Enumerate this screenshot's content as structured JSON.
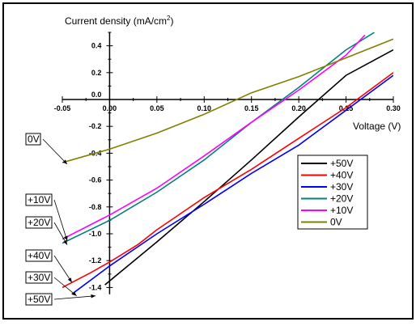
{
  "chart_data": {
    "type": "line",
    "ylabel": "Current density (mA/cm",
    "ylabel_sup": "2",
    "ylabel_close": ")",
    "xlabel": "Voltage (V)",
    "xlim": [
      -0.05,
      0.3
    ],
    "ylim": [
      -1.5,
      0.5
    ],
    "x_ticks": [
      -0.05,
      0.0,
      0.05,
      0.1,
      0.15,
      0.2,
      0.25,
      0.3
    ],
    "x_tick_labels": [
      "-0.05",
      "0.00",
      "0.05",
      "0.10",
      "0.15",
      "0.20",
      "0.25",
      "0.30"
    ],
    "y_ticks": [
      0.4,
      0.2,
      0.0,
      -0.2,
      -0.4,
      -0.6,
      -0.8,
      -1.0,
      -1.2,
      -1.4
    ],
    "y_tick_labels": [
      "0.4",
      "0.2",
      "0.0",
      "-0.2",
      "-0.4",
      "-0.6",
      "-0.8",
      "-1.0",
      "-1.2",
      "-1.4"
    ],
    "grid": false,
    "legend_position": "right-middle",
    "series": [
      {
        "name": "+50V",
        "color": "#000000",
        "points": [
          [
            -0.005,
            -1.38
          ],
          [
            0.05,
            -1.06
          ],
          [
            0.1,
            -0.76
          ],
          [
            0.15,
            -0.45
          ],
          [
            0.2,
            -0.13
          ],
          [
            0.25,
            0.18
          ],
          [
            0.3,
            0.37
          ]
        ]
      },
      {
        "name": "+40V",
        "color": "#ff0000",
        "points": [
          [
            -0.05,
            -1.4
          ],
          [
            -0.02,
            -1.29
          ],
          [
            0.0,
            -1.21
          ],
          [
            0.03,
            -1.08
          ],
          [
            0.05,
            -0.97
          ],
          [
            0.1,
            -0.73
          ],
          [
            0.15,
            -0.52
          ],
          [
            0.2,
            -0.29
          ],
          [
            0.25,
            -0.06
          ],
          [
            0.3,
            0.2
          ]
        ]
      },
      {
        "name": "+30V",
        "color": "#0000ff",
        "points": [
          [
            -0.04,
            -1.45
          ],
          [
            0.0,
            -1.24
          ],
          [
            0.05,
            -1.0
          ],
          [
            0.1,
            -0.78
          ],
          [
            0.15,
            -0.55
          ],
          [
            0.2,
            -0.34
          ],
          [
            0.25,
            -0.08
          ],
          [
            0.3,
            0.18
          ]
        ]
      },
      {
        "name": "+20V",
        "color": "#008080",
        "points": [
          [
            -0.05,
            -1.07
          ],
          [
            0.0,
            -0.9
          ],
          [
            0.05,
            -0.69
          ],
          [
            0.1,
            -0.45
          ],
          [
            0.15,
            -0.17
          ],
          [
            0.2,
            0.09
          ],
          [
            0.25,
            0.37
          ],
          [
            0.28,
            0.5
          ]
        ]
      },
      {
        "name": "+10V",
        "color": "#ff00ff",
        "points": [
          [
            -0.05,
            -1.04
          ],
          [
            0.0,
            -0.86
          ],
          [
            0.05,
            -0.66
          ],
          [
            0.1,
            -0.42
          ],
          [
            0.15,
            -0.17
          ],
          [
            0.2,
            0.07
          ],
          [
            0.25,
            0.33
          ],
          [
            0.27,
            0.48
          ]
        ]
      },
      {
        "name": "0V",
        "color": "#808000",
        "points": [
          [
            -0.05,
            -0.47
          ],
          [
            0.0,
            -0.37
          ],
          [
            0.05,
            -0.25
          ],
          [
            0.1,
            -0.11
          ],
          [
            0.15,
            0.05
          ],
          [
            0.2,
            0.17
          ],
          [
            0.25,
            0.31
          ],
          [
            0.3,
            0.45
          ]
        ]
      }
    ],
    "annotations": [
      {
        "label": "0V",
        "series": "0V",
        "at": [
          -0.05,
          -0.47
        ]
      },
      {
        "label": "+10V",
        "series": "+10V",
        "at": [
          -0.05,
          -1.04
        ]
      },
      {
        "label": "+20V",
        "series": "+20V",
        "at": [
          -0.05,
          -1.07
        ]
      },
      {
        "label": "+40V",
        "series": "+40V",
        "at": [
          -0.045,
          -1.35
        ]
      },
      {
        "label": "+30V",
        "series": "+30V",
        "at": [
          -0.04,
          -1.45
        ]
      },
      {
        "label": "+50V",
        "series": "+50V",
        "at": [
          -0.02,
          -1.45
        ]
      }
    ]
  }
}
